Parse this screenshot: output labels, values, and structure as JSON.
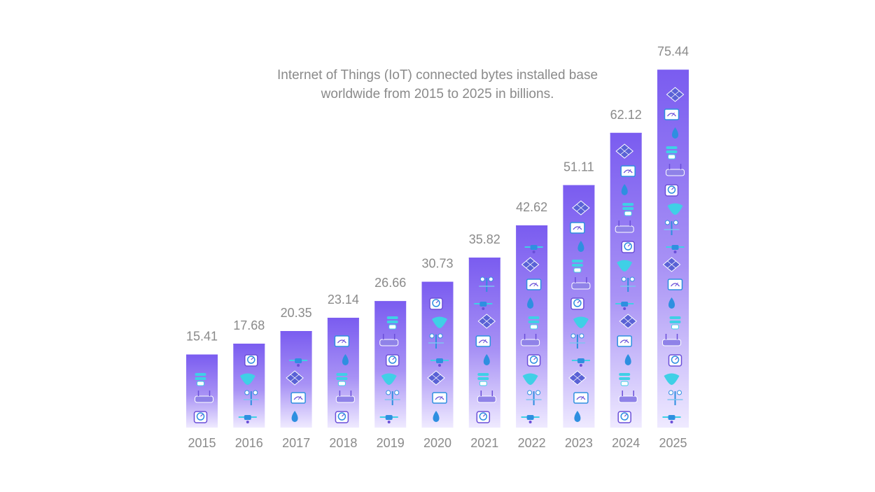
{
  "chart_data": {
    "type": "bar",
    "title_lines": [
      "Internet of Things (IoT) connected bytes installed base",
      "worldwide from 2015 to 2025 in billions."
    ],
    "categories": [
      "2015",
      "2016",
      "2017",
      "2018",
      "2019",
      "2020",
      "2021",
      "2022",
      "2023",
      "2024",
      "2025"
    ],
    "values": [
      15.41,
      17.68,
      20.35,
      23.14,
      26.66,
      30.73,
      35.82,
      42.62,
      51.11,
      62.12,
      75.44
    ],
    "value_labels": [
      "15.41",
      "17.68",
      "20.35",
      "23.14",
      "26.66",
      "30.73",
      "35.82",
      "42.62",
      "51.11",
      "62.12",
      "75.44"
    ],
    "xlabel": "",
    "ylabel": "",
    "grid": false,
    "legend": "none",
    "colors": {
      "bar_top": "#7a5cf0",
      "bar_bottom": "#efeaff",
      "text": "#8a8a8a",
      "icon_cyan": "#3fd0e6",
      "icon_purple": "#6a4fd8",
      "icon_blue": "#2e8fe0"
    },
    "bar_icons": [
      "meter-icon",
      "solar-panel-icon",
      "router-icon",
      "drone-icon",
      "smart-bulb-icon",
      "wind-vane-icon",
      "droplet-icon",
      "leaf-icon",
      "gauge-icon"
    ]
  }
}
